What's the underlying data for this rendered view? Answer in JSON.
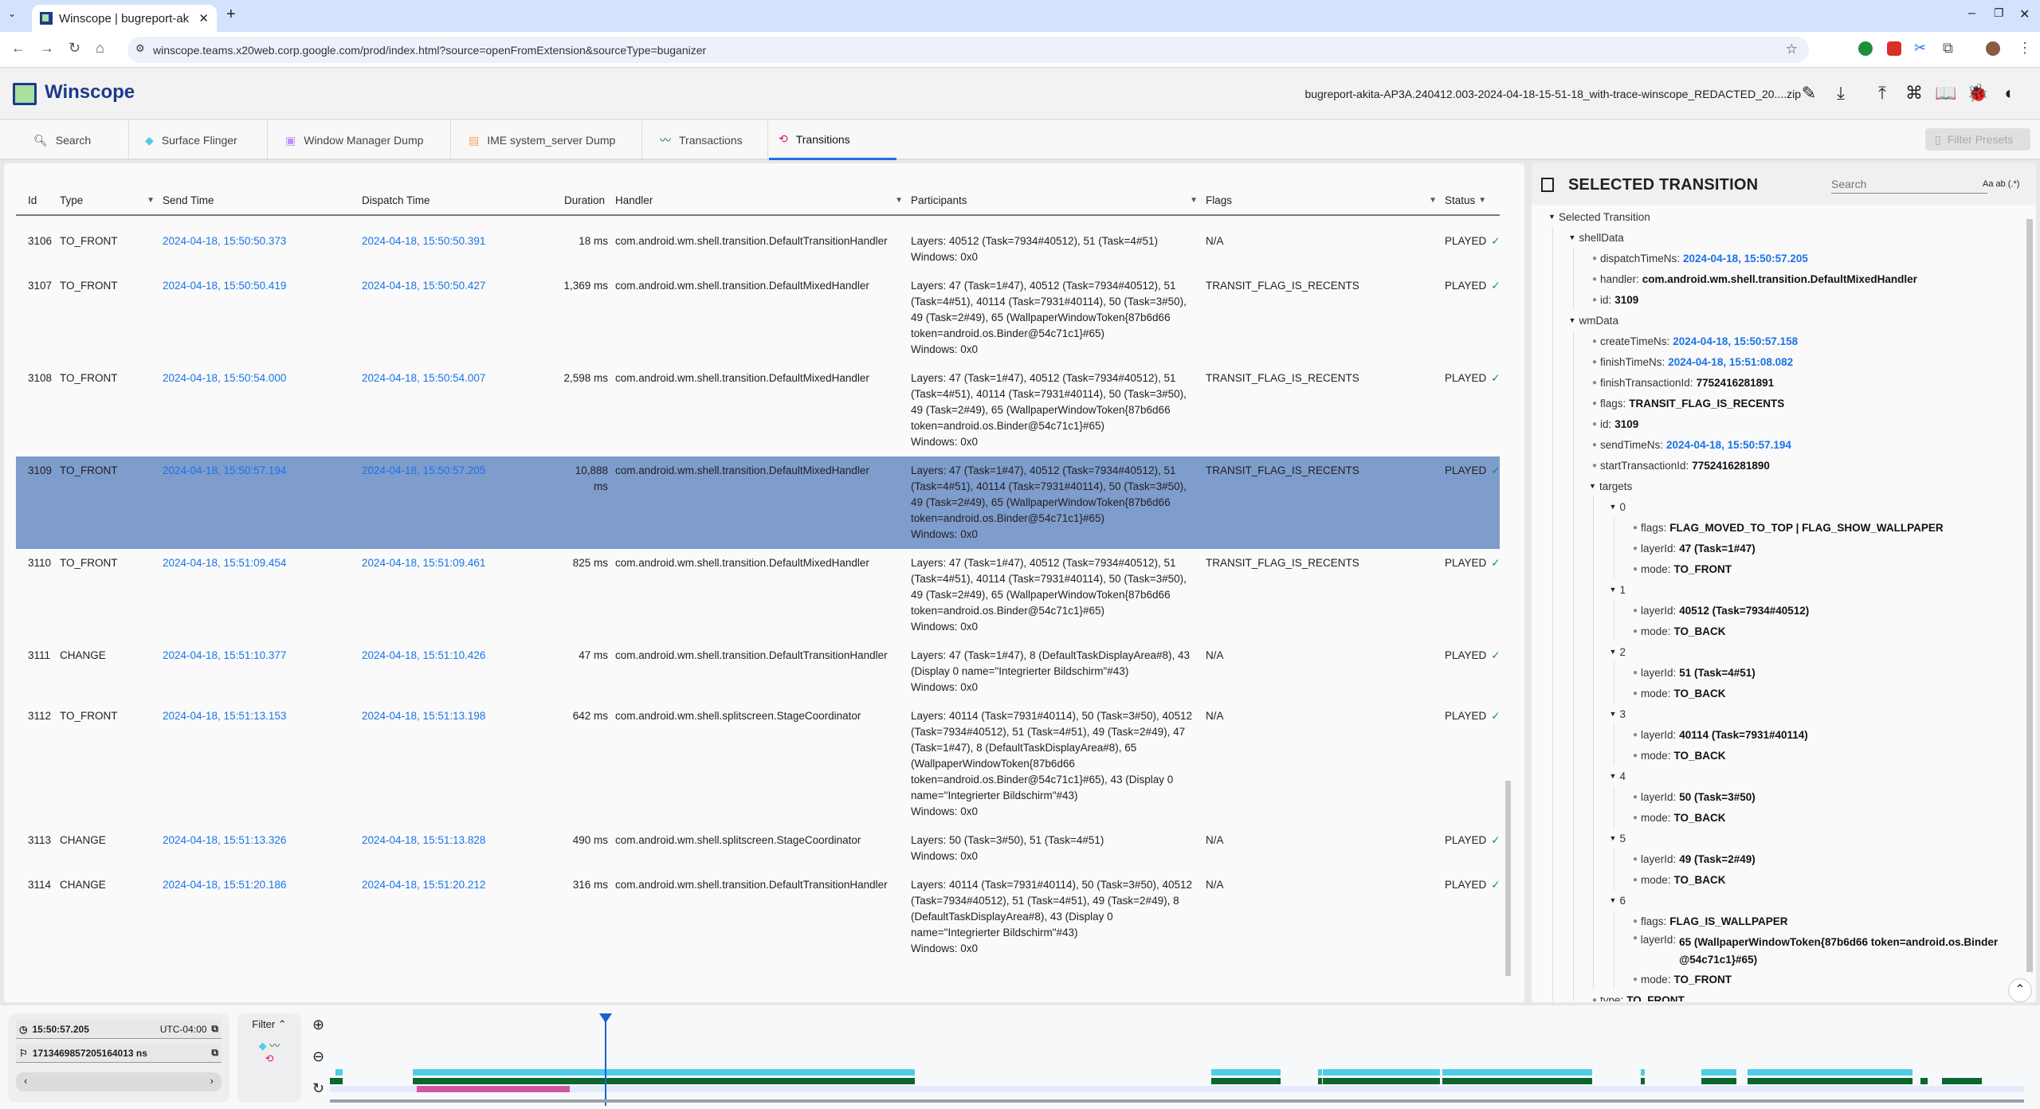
{
  "browser": {
    "tab_title": "Winscope | bugreport-ak",
    "url": "winscope.teams.x20web.corp.google.com/prod/index.html?source=openFromExtension&sourceType=buganizer"
  },
  "app": {
    "title": "Winscope",
    "filename": "bugreport-akita-AP3A.240412.003-2024-04-18-15-51-18_with-trace-winscope_REDACTED_20....zip",
    "filter_presets": "Filter Presets"
  },
  "tabs": [
    {
      "label": "Search",
      "icon": "search-icon"
    },
    {
      "label": "Surface Flinger",
      "icon": "layers-icon"
    },
    {
      "label": "Window Manager Dump",
      "icon": "window-icon"
    },
    {
      "label": "IME system_server Dump",
      "icon": "keyboard-icon"
    },
    {
      "label": "Transactions",
      "icon": "timeline-icon"
    },
    {
      "label": "Transitions",
      "icon": "transition-icon",
      "active": true
    }
  ],
  "table": {
    "headers": {
      "id": "Id",
      "type": "Type",
      "send_time": "Send Time",
      "dispatch_time": "Dispatch Time",
      "duration": "Duration",
      "handler": "Handler",
      "participants": "Participants",
      "flags": "Flags",
      "status": "Status"
    },
    "rows": [
      {
        "id": "3106",
        "type": "TO_FRONT",
        "send": "2024-04-18, 15:50:50.373",
        "dispatch": "2024-04-18, 15:50:50.391",
        "duration": "18 ms",
        "handler": "com.android.wm.shell.transition.DefaultTransitionHandler",
        "layers": "Layers: 40512 (Task=7934#40512), 51 (Task=4#51)",
        "windows": "Windows: 0x0",
        "flags": "N/A",
        "status": "PLAYED"
      },
      {
        "id": "3107",
        "type": "TO_FRONT",
        "send": "2024-04-18, 15:50:50.419",
        "dispatch": "2024-04-18, 15:50:50.427",
        "duration": "1,369 ms",
        "handler": "com.android.wm.shell.transition.DefaultMixedHandler",
        "layers": "Layers: 47 (Task=1#47), 40512 (Task=7934#40512), 51 (Task=4#51), 40114 (Task=7931#40114), 50 (Task=3#50), 49 (Task=2#49), 65 (WallpaperWindowToken{87b6d66 token=android.os.Binder@54c71c1}#65)",
        "windows": "Windows: 0x0",
        "flags": "TRANSIT_FLAG_IS_RECENTS",
        "status": "PLAYED"
      },
      {
        "id": "3108",
        "type": "TO_FRONT",
        "send": "2024-04-18, 15:50:54.000",
        "dispatch": "2024-04-18, 15:50:54.007",
        "duration": "2,598 ms",
        "handler": "com.android.wm.shell.transition.DefaultMixedHandler",
        "layers": "Layers: 47 (Task=1#47), 40512 (Task=7934#40512), 51 (Task=4#51), 40114 (Task=7931#40114), 50 (Task=3#50), 49 (Task=2#49), 65 (WallpaperWindowToken{87b6d66 token=android.os.Binder@54c71c1}#65)",
        "windows": "Windows: 0x0",
        "flags": "TRANSIT_FLAG_IS_RECENTS",
        "status": "PLAYED"
      },
      {
        "id": "3109",
        "type": "TO_FRONT",
        "send": "2024-04-18, 15:50:57.194",
        "dispatch": "2024-04-18, 15:50:57.205",
        "duration": "10,888 ms",
        "handler": "com.android.wm.shell.transition.DefaultMixedHandler",
        "layers": "Layers: 47 (Task=1#47), 40512 (Task=7934#40512), 51 (Task=4#51), 40114 (Task=7931#40114), 50 (Task=3#50), 49 (Task=2#49), 65 (WallpaperWindowToken{87b6d66 token=android.os.Binder@54c71c1}#65)",
        "windows": "Windows: 0x0",
        "flags": "TRANSIT_FLAG_IS_RECENTS",
        "status": "PLAYED",
        "selected": true
      },
      {
        "id": "3110",
        "type": "TO_FRONT",
        "send": "2024-04-18, 15:51:09.454",
        "dispatch": "2024-04-18, 15:51:09.461",
        "duration": "825 ms",
        "handler": "com.android.wm.shell.transition.DefaultMixedHandler",
        "layers": "Layers: 47 (Task=1#47), 40512 (Task=7934#40512), 51 (Task=4#51), 40114 (Task=7931#40114), 50 (Task=3#50), 49 (Task=2#49), 65 (WallpaperWindowToken{87b6d66 token=android.os.Binder@54c71c1}#65)",
        "windows": "Windows: 0x0",
        "flags": "TRANSIT_FLAG_IS_RECENTS",
        "status": "PLAYED"
      },
      {
        "id": "3111",
        "type": "CHANGE",
        "send": "2024-04-18, 15:51:10.377",
        "dispatch": "2024-04-18, 15:51:10.426",
        "duration": "47 ms",
        "handler": "com.android.wm.shell.transition.DefaultTransitionHandler",
        "layers": "Layers: 47 (Task=1#47), 8 (DefaultTaskDisplayArea#8), 43 (Display 0 name=\"Integrierter Bildschirm\"#43)",
        "windows": "Windows: 0x0",
        "flags": "N/A",
        "status": "PLAYED"
      },
      {
        "id": "3112",
        "type": "TO_FRONT",
        "send": "2024-04-18, 15:51:13.153",
        "dispatch": "2024-04-18, 15:51:13.198",
        "duration": "642 ms",
        "handler": "com.android.wm.shell.splitscreen.StageCoordinator",
        "layers": "Layers: 40114 (Task=7931#40114), 50 (Task=3#50), 40512 (Task=7934#40512), 51 (Task=4#51), 49 (Task=2#49), 47 (Task=1#47), 8 (DefaultTaskDisplayArea#8), 65 (WallpaperWindowToken{87b6d66 token=android.os.Binder@54c71c1}#65), 43 (Display 0 name=\"Integrierter Bildschirm\"#43)",
        "windows": "Windows: 0x0",
        "flags": "N/A",
        "status": "PLAYED"
      },
      {
        "id": "3113",
        "type": "CHANGE",
        "send": "2024-04-18, 15:51:13.326",
        "dispatch": "2024-04-18, 15:51:13.828",
        "duration": "490 ms",
        "handler": "com.android.wm.shell.splitscreen.StageCoordinator",
        "layers": "Layers: 50 (Task=3#50), 51 (Task=4#51)",
        "windows": "Windows: 0x0",
        "flags": "N/A",
        "status": "PLAYED"
      },
      {
        "id": "3114",
        "type": "CHANGE",
        "send": "2024-04-18, 15:51:20.186",
        "dispatch": "2024-04-18, 15:51:20.212",
        "duration": "316 ms",
        "handler": "com.android.wm.shell.transition.DefaultTransitionHandler",
        "layers": "Layers: 40114 (Task=7931#40114), 50 (Task=3#50), 40512 (Task=7934#40512), 51 (Task=4#51), 49 (Task=2#49), 8 (DefaultTaskDisplayArea#8), 43 (Display 0 name=\"Integrierter Bildschirm\"#43)",
        "windows": "Windows: 0x0",
        "flags": "N/A",
        "status": "PLAYED"
      }
    ]
  },
  "details": {
    "title": "SELECTED TRANSITION",
    "search_placeholder": "Search",
    "search_options": "Aa  ab  (.*)",
    "tree": [
      {
        "label": "Selected Transition",
        "children": [
          {
            "label": "shellData",
            "children": [
              {
                "key": "dispatchTimeNs:",
                "value": "2024-04-18, 15:50:57.205",
                "link": true
              },
              {
                "key": "handler:",
                "value": "com.android.wm.shell.transition.DefaultMixedHandler"
              },
              {
                "key": "id:",
                "value": "3109"
              }
            ]
          },
          {
            "label": "wmData",
            "children": [
              {
                "key": "createTimeNs:",
                "value": "2024-04-18, 15:50:57.158",
                "link": true
              },
              {
                "key": "finishTimeNs:",
                "value": "2024-04-18, 15:51:08.082",
                "link": true
              },
              {
                "key": "finishTransactionId:",
                "value": "7752416281891"
              },
              {
                "key": "flags:",
                "value": "TRANSIT_FLAG_IS_RECENTS"
              },
              {
                "key": "id:",
                "value": "3109"
              },
              {
                "key": "sendTimeNs:",
                "value": "2024-04-18, 15:50:57.194",
                "link": true
              },
              {
                "key": "startTransactionId:",
                "value": "7752416281890"
              },
              {
                "label": "targets",
                "children": [
                  {
                    "label": "0",
                    "children": [
                      {
                        "key": "flags:",
                        "value": "FLAG_MOVED_TO_TOP | FLAG_SHOW_WALLPAPER"
                      },
                      {
                        "key": "layerId:",
                        "value": "47 (Task=1#47)"
                      },
                      {
                        "key": "mode:",
                        "value": "TO_FRONT"
                      }
                    ]
                  },
                  {
                    "label": "1",
                    "children": [
                      {
                        "key": "layerId:",
                        "value": "40512 (Task=7934#40512)"
                      },
                      {
                        "key": "mode:",
                        "value": "TO_BACK"
                      }
                    ]
                  },
                  {
                    "label": "2",
                    "children": [
                      {
                        "key": "layerId:",
                        "value": "51 (Task=4#51)"
                      },
                      {
                        "key": "mode:",
                        "value": "TO_BACK"
                      }
                    ]
                  },
                  {
                    "label": "3",
                    "children": [
                      {
                        "key": "layerId:",
                        "value": "40114 (Task=7931#40114)"
                      },
                      {
                        "key": "mode:",
                        "value": "TO_BACK"
                      }
                    ]
                  },
                  {
                    "label": "4",
                    "children": [
                      {
                        "key": "layerId:",
                        "value": "50 (Task=3#50)"
                      },
                      {
                        "key": "mode:",
                        "value": "TO_BACK"
                      }
                    ]
                  },
                  {
                    "label": "5",
                    "children": [
                      {
                        "key": "layerId:",
                        "value": "49 (Task=2#49)"
                      },
                      {
                        "key": "mode:",
                        "value": "TO_BACK"
                      }
                    ]
                  },
                  {
                    "label": "6",
                    "children": [
                      {
                        "key": "flags:",
                        "value": "FLAG_IS_WALLPAPER"
                      },
                      {
                        "key": "layerId:",
                        "value": "65 (WallpaperWindowToken{87b6d66 token=android.os.Binder @54c71c1}#65)",
                        "wrap": true
                      },
                      {
                        "key": "mode:",
                        "value": "TO_FRONT"
                      }
                    ]
                  }
                ]
              },
              {
                "key": "type:",
                "value": "TO_FRONT"
              }
            ]
          }
        ]
      }
    ]
  },
  "timeline": {
    "time": "15:50:57.205",
    "timezone": "UTC-04:00",
    "ns": "1713469857205164013 ns",
    "filter_label": "Filter"
  },
  "colors": {
    "accent": "#1a73e8",
    "selected_row": "#7e9ccc",
    "sf_trace": "#4fcde6",
    "transactions_trace": "#0b6630",
    "transitions_trace": "#d356a5"
  }
}
